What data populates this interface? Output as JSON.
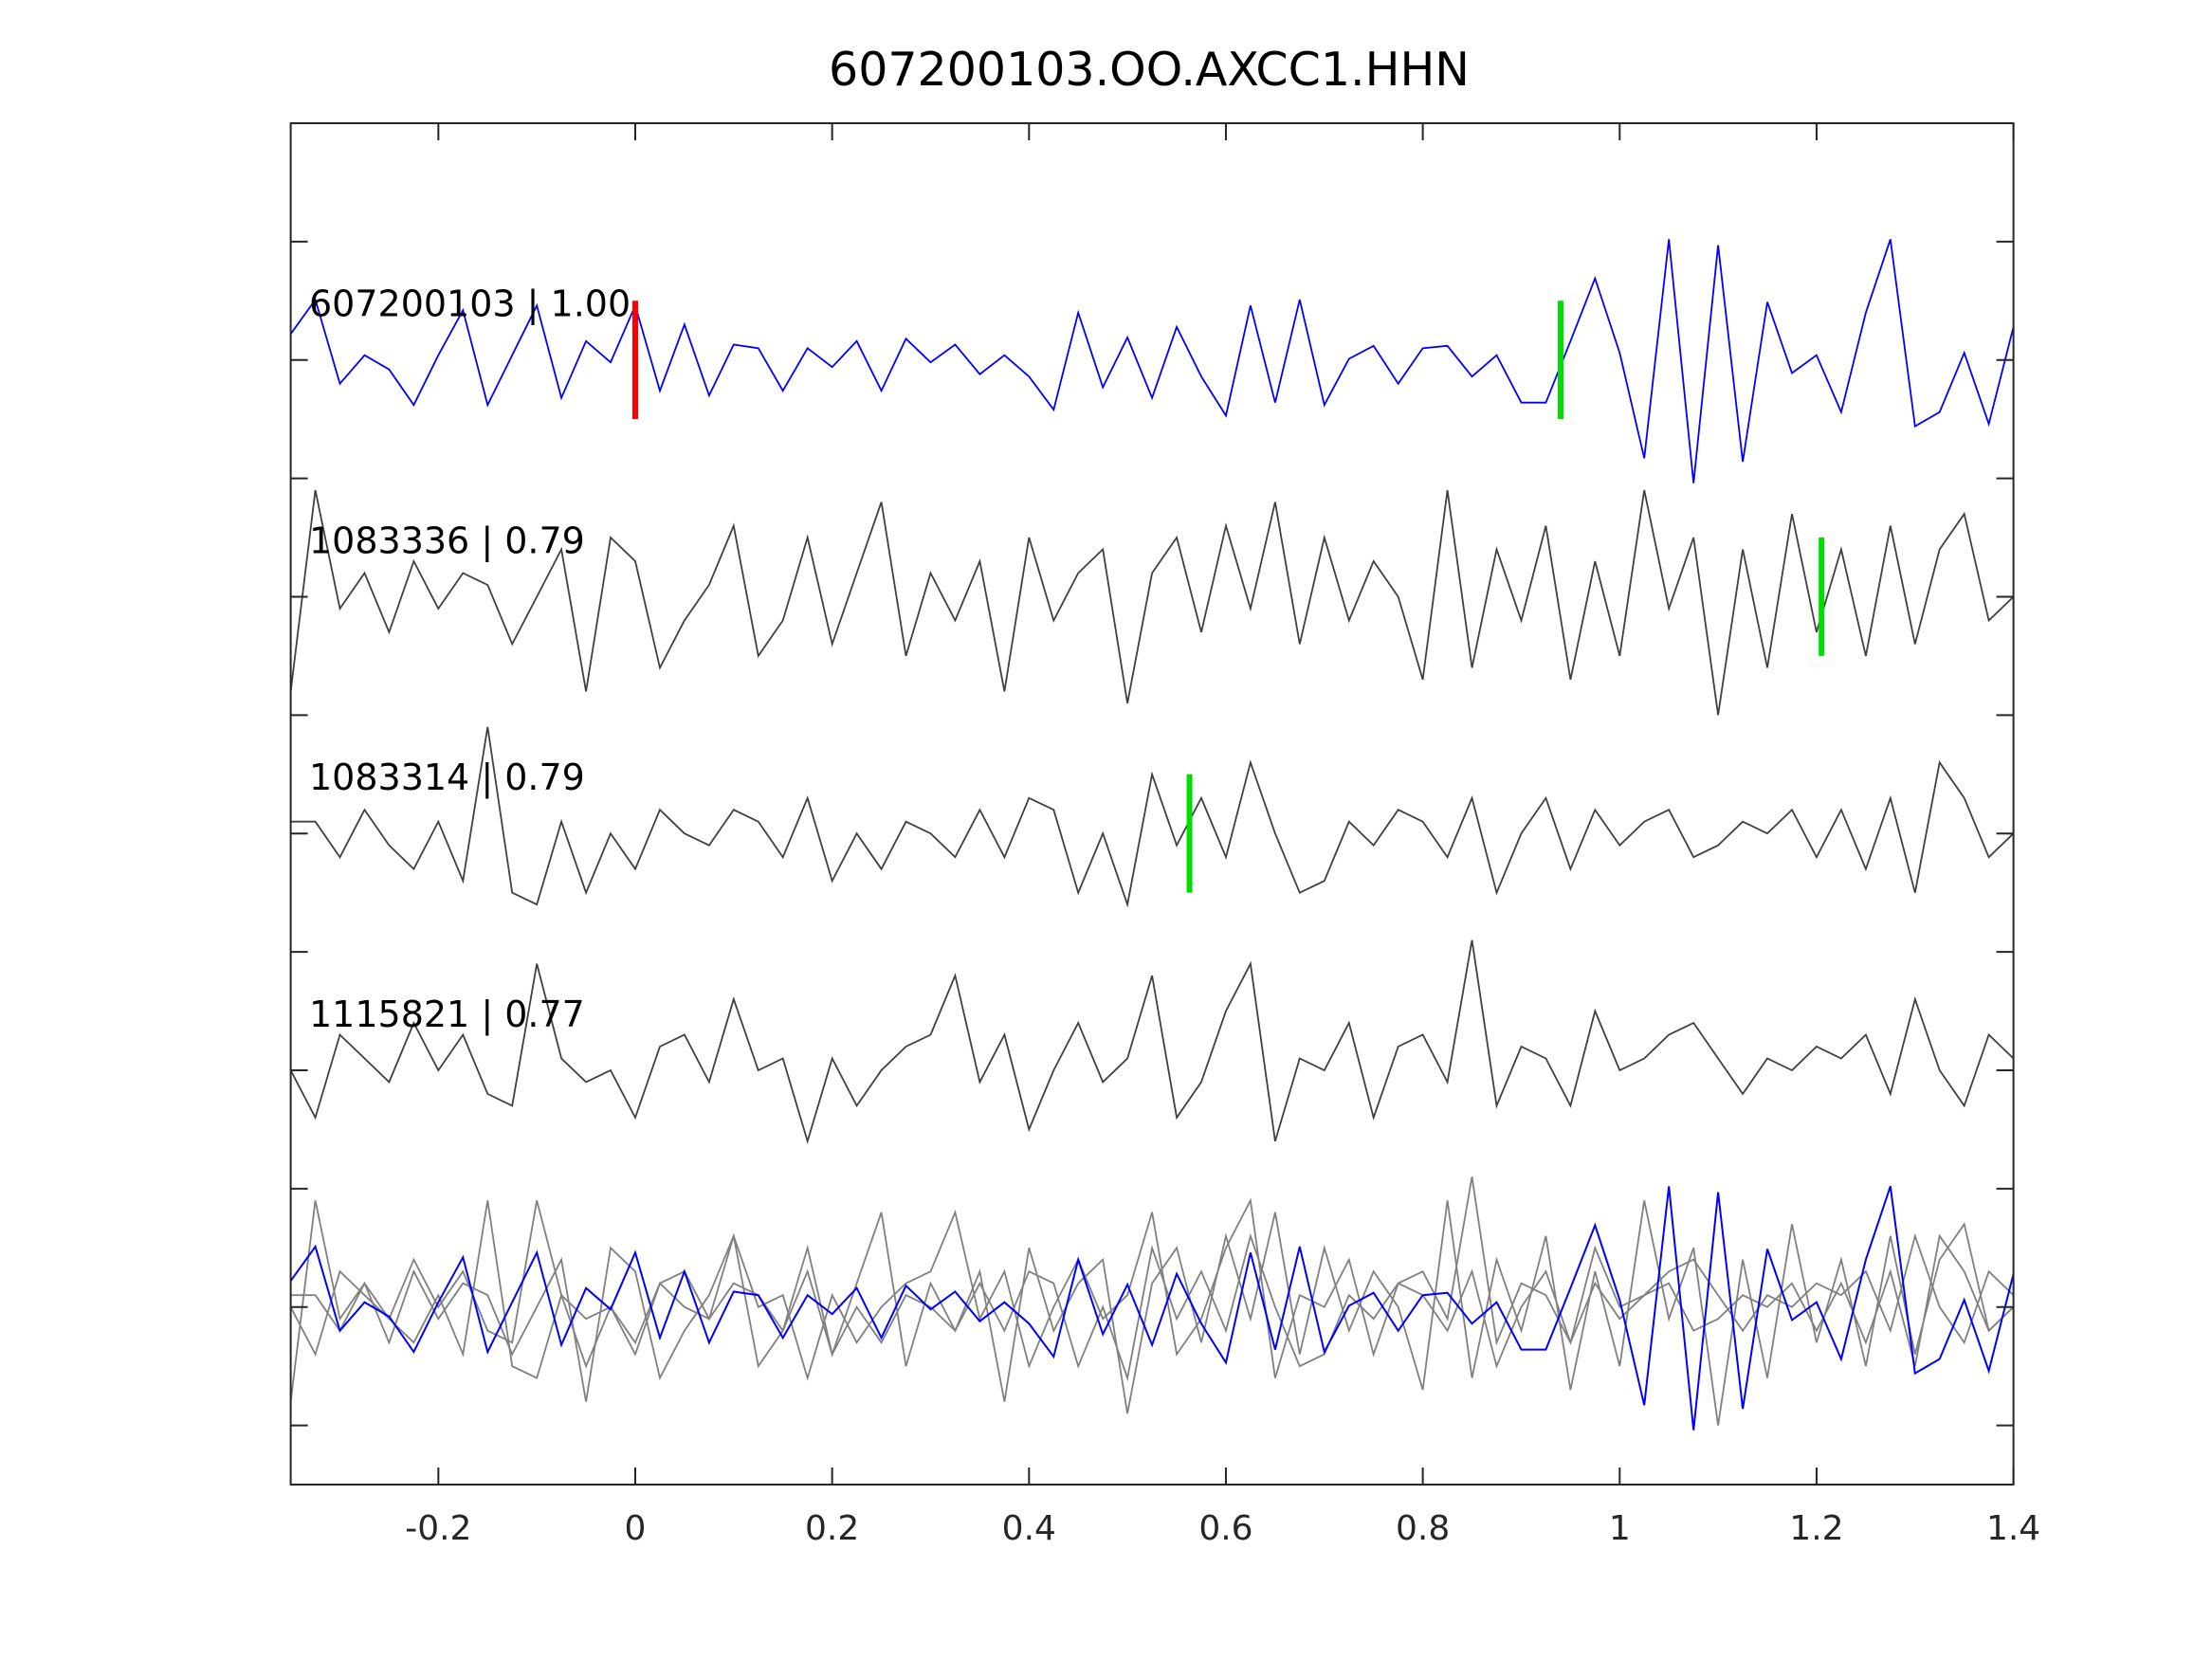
{
  "chart_data": {
    "type": "line",
    "title": "607200103.OO.AXCC1.HHN",
    "xlabel": "",
    "ylabel": "",
    "xlim": [
      -0.35,
      1.4
    ],
    "ylim": [
      0.5,
      12
    ],
    "xticks": [
      -0.2,
      0,
      0.2,
      0.4,
      0.6,
      0.8,
      1,
      1.2,
      1.4
    ],
    "xtick_labels": [
      "-0.2",
      "0",
      "0.2",
      "0.4",
      "0.6",
      "0.8",
      "1",
      "1.2",
      "1.4"
    ],
    "yticks": [
      1,
      2,
      3,
      4,
      5,
      6,
      7,
      8,
      9,
      10,
      11
    ],
    "grid": false,
    "colors": {
      "reference": "#0000ff",
      "trace": "#404040",
      "overlay_trace": "#808080",
      "red_pick": "#ff0000",
      "green_pick": "#00dd00",
      "axis": "#262626"
    },
    "overlay_offset": 2,
    "series": [
      {
        "name": "607200103",
        "label": "607200103 | 1.00",
        "offset": 10,
        "color": "#0000ff",
        "values": [
          0.22,
          0.51,
          -0.2,
          0.04,
          -0.08,
          -0.38,
          0.04,
          0.42,
          -0.38,
          0.04,
          0.46,
          -0.32,
          0.16,
          -0.02,
          0.46,
          -0.26,
          0.3,
          -0.3,
          0.13,
          0.1,
          -0.26,
          0.1,
          -0.06,
          0.16,
          -0.26,
          0.18,
          -0.02,
          0.13,
          -0.12,
          0.04,
          -0.14,
          -0.42,
          0.4,
          -0.23,
          0.19,
          -0.32,
          0.28,
          -0.14,
          -0.47,
          0.46,
          -0.36,
          0.51,
          -0.38,
          0.01,
          0.12,
          -0.2,
          0.1,
          0.12,
          -0.14,
          0.04,
          -0.36,
          -0.36,
          0.16,
          0.69,
          0.06,
          -0.83,
          1.02,
          -1.04,
          0.97,
          -0.86,
          0.49,
          -0.11,
          0.04,
          -0.44,
          0.4,
          1.02,
          -0.56,
          -0.44,
          0.06,
          -0.54,
          0.28
        ],
        "picks": [
          {
            "t": 0,
            "color": "red"
          },
          {
            "t": 0.94,
            "color": "green"
          }
        ]
      },
      {
        "name": "1083336",
        "label": "1083336 | 0.79",
        "offset": 8,
        "color": "#404040",
        "values": [
          -0.8,
          0.9,
          -0.1,
          0.2,
          -0.3,
          0.3,
          -0.1,
          0.2,
          0.1,
          -0.4,
          0.0,
          0.4,
          -0.8,
          0.5,
          0.3,
          -0.6,
          -0.2,
          0.1,
          0.6,
          -0.5,
          -0.2,
          0.5,
          -0.4,
          0.2,
          0.8,
          -0.5,
          0.2,
          -0.2,
          0.3,
          -0.8,
          0.5,
          -0.2,
          0.2,
          0.4,
          -0.9,
          0.2,
          0.5,
          -0.3,
          0.6,
          -0.1,
          0.8,
          -0.4,
          0.5,
          -0.2,
          0.3,
          0.0,
          -0.7,
          0.9,
          -0.6,
          0.4,
          -0.2,
          0.6,
          -0.7,
          0.3,
          -0.5,
          0.9,
          -0.1,
          0.5,
          -1.0,
          0.4,
          -0.6,
          0.7,
          -0.3,
          0.4,
          -0.5,
          0.6,
          -0.4,
          0.4,
          0.7,
          -0.2,
          0.0
        ],
        "picks": [
          {
            "t": 1.205,
            "color": "green"
          }
        ]
      },
      {
        "name": "1083314",
        "label": "1083314 | 0.79",
        "offset": 6,
        "color": "#404040",
        "values": [
          0.1,
          0.1,
          -0.2,
          0.2,
          -0.1,
          -0.3,
          0.1,
          -0.4,
          0.9,
          -0.5,
          -0.6,
          0.1,
          -0.5,
          0.0,
          -0.3,
          0.2,
          0.0,
          -0.1,
          0.2,
          0.1,
          -0.2,
          0.3,
          -0.4,
          0.0,
          -0.3,
          0.1,
          0.0,
          -0.2,
          0.2,
          -0.2,
          0.3,
          0.2,
          -0.5,
          0.0,
          -0.6,
          0.5,
          -0.1,
          0.3,
          -0.2,
          0.6,
          0.0,
          -0.5,
          -0.4,
          0.1,
          -0.1,
          0.2,
          0.1,
          -0.2,
          0.3,
          -0.5,
          0.0,
          0.3,
          -0.3,
          0.2,
          -0.1,
          0.1,
          0.2,
          -0.2,
          -0.1,
          0.1,
          0.0,
          0.2,
          -0.2,
          0.2,
          -0.3,
          0.3,
          -0.5,
          0.6,
          0.3,
          -0.2,
          0.0
        ],
        "picks": [
          {
            "t": 0.563,
            "color": "green"
          }
        ]
      },
      {
        "name": "1115821",
        "label": "1115821 | 0.77",
        "offset": 4,
        "color": "#404040",
        "values": [
          0.0,
          -0.4,
          0.3,
          0.1,
          -0.1,
          0.4,
          0.0,
          0.3,
          -0.2,
          -0.3,
          0.9,
          0.1,
          -0.1,
          0.0,
          -0.4,
          0.2,
          0.3,
          -0.1,
          0.6,
          0.0,
          0.1,
          -0.6,
          0.1,
          -0.3,
          0.0,
          0.2,
          0.3,
          0.8,
          -0.1,
          0.3,
          -0.5,
          0.0,
          0.4,
          -0.1,
          0.1,
          0.8,
          -0.4,
          -0.1,
          0.5,
          0.9,
          -0.6,
          0.1,
          0.0,
          0.4,
          -0.4,
          0.2,
          0.3,
          -0.1,
          1.1,
          -0.3,
          0.2,
          0.1,
          -0.3,
          0.5,
          0.0,
          0.1,
          0.3,
          0.4,
          0.1,
          -0.2,
          0.1,
          0.0,
          0.2,
          0.1,
          0.3,
          -0.2,
          0.6,
          0.0,
          -0.3,
          0.3,
          0.1
        ],
        "picks": []
      }
    ]
  }
}
